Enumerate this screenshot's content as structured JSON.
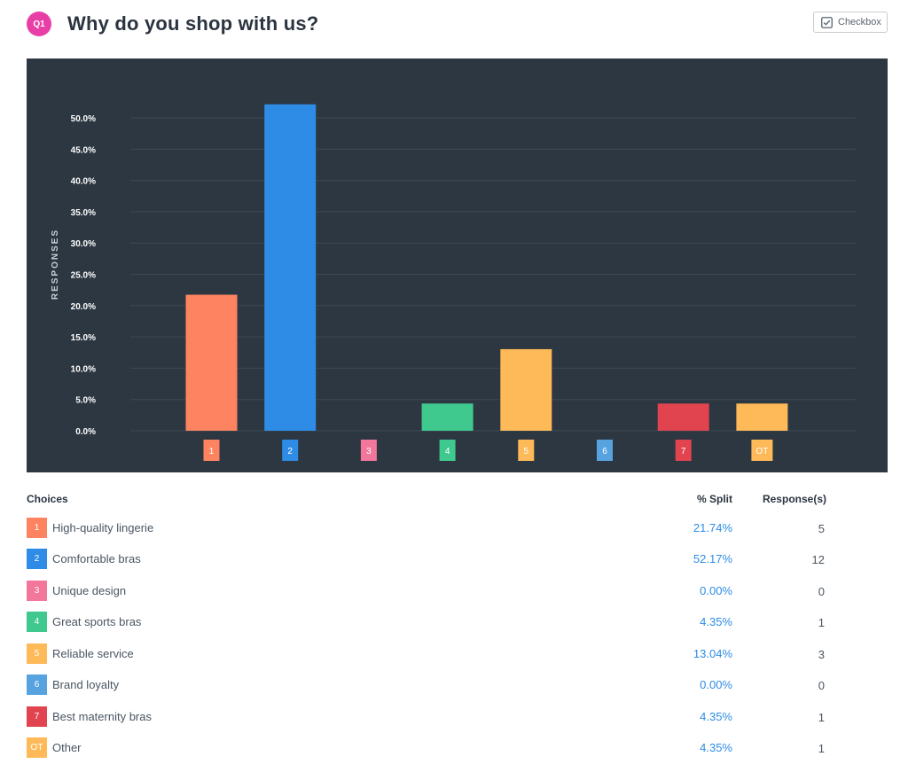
{
  "question": {
    "badge": "Q1",
    "title": "Why do you shop with us?",
    "type_label": "Checkbox",
    "type_icon": "checkbox-icon"
  },
  "table": {
    "headers": {
      "choices": "Choices",
      "split": "% Split",
      "responses": "Response(s)"
    },
    "rows": [
      {
        "code": "1",
        "label": "High-quality lingerie",
        "split": "21.74%",
        "responses": "5",
        "color": "#fe8461"
      },
      {
        "code": "2",
        "label": "Comfortable bras",
        "split": "52.17%",
        "responses": "12",
        "color": "#2e8ce6"
      },
      {
        "code": "3",
        "label": "Unique design",
        "split": "0.00%",
        "responses": "0",
        "color": "#f3779b"
      },
      {
        "code": "4",
        "label": "Great sports bras",
        "split": "4.35%",
        "responses": "1",
        "color": "#40c98f"
      },
      {
        "code": "5",
        "label": "Reliable service",
        "split": "13.04%",
        "responses": "3",
        "color": "#feb958"
      },
      {
        "code": "6",
        "label": "Brand loyalty",
        "split": "0.00%",
        "responses": "0",
        "color": "#57a3e0"
      },
      {
        "code": "7",
        "label": "Best maternity bras",
        "split": "4.35%",
        "responses": "1",
        "color": "#e1444f"
      },
      {
        "code": "OT",
        "label": "Other",
        "split": "4.35%",
        "responses": "1",
        "color": "#feb958"
      }
    ]
  },
  "chart_data": {
    "type": "bar",
    "ylabel": "RESPONSES",
    "xlabel": "",
    "title": "",
    "categories": [
      "1",
      "2",
      "3",
      "4",
      "5",
      "6",
      "7",
      "OT"
    ],
    "values": [
      21.74,
      52.17,
      0,
      4.35,
      13.04,
      0,
      4.35,
      4.35
    ],
    "colors": [
      "#fe8461",
      "#2e8ce6",
      "#f3779b",
      "#40c98f",
      "#feb958",
      "#57a3e0",
      "#e1444f",
      "#feb958"
    ],
    "ylim": [
      0,
      50
    ],
    "yticks": [
      "0.0%",
      "5.0%",
      "10.0%",
      "15.0%",
      "20.0%",
      "25.0%",
      "30.0%",
      "35.0%",
      "40.0%",
      "45.0%",
      "50.0%"
    ],
    "grid": true,
    "background": "#2c3741"
  }
}
